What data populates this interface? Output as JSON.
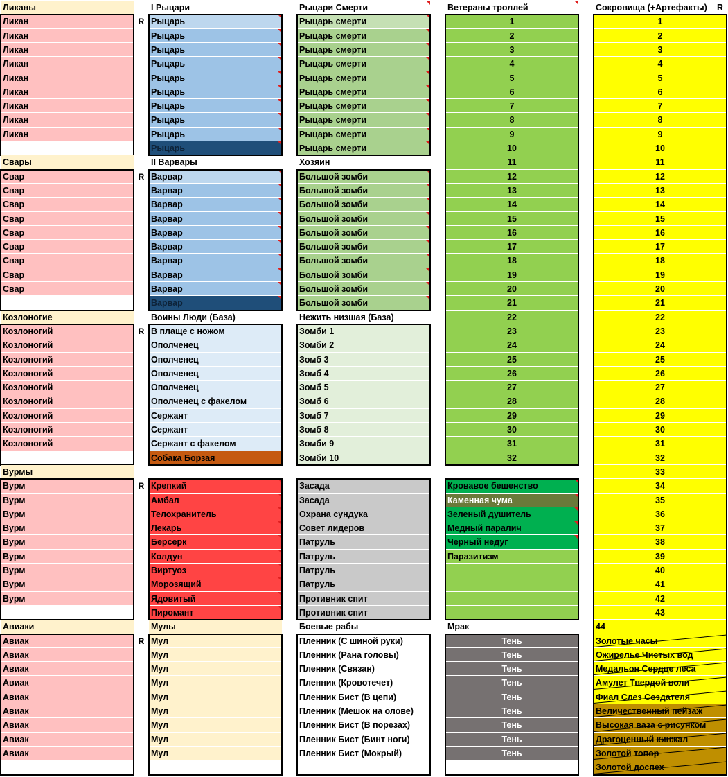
{
  "colors": {
    "header": "#fff2cc",
    "pink": "#ffc0c0",
    "blue_light": "#bdd7ee",
    "blue": "#9dc3e6",
    "blue_dark": "#1f4e79",
    "green_light": "#c5e0b4",
    "green": "#a9d18e",
    "green_pale": "#e2efda",
    "lime": "#92d050",
    "red": "#ff4444",
    "gray": "#c9c9c9",
    "dark_gray": "#767171",
    "bright_green": "#00b050",
    "olive": "#6a7a3a",
    "brown_orange": "#c55a11",
    "yellow": "#ffff00",
    "gold": "#bf8f00"
  },
  "r_marks": [
    "R",
    "R",
    "R",
    "R",
    "R",
    "R"
  ],
  "col_a": {
    "groups": [
      {
        "header": "Ликаны",
        "items": [
          "Ликан",
          "Ликан",
          "Ликан",
          "Ликан",
          "Ликан",
          "Ликан",
          "Ликан",
          "Ликан",
          "Ликан"
        ]
      },
      {
        "header": "Свары",
        "items": [
          "Свар",
          "Свар",
          "Свар",
          "Свар",
          "Свар",
          "Свар",
          "Свар",
          "Свар",
          "Свар"
        ]
      },
      {
        "header": "Козлоногие",
        "items": [
          "Козлоногий",
          "Козлоногий",
          "Козлоногий",
          "Козлоногий",
          "Козлоногий",
          "Козлоногий",
          "Козлоногий",
          "Козлоногий",
          "Козлоногий"
        ]
      },
      {
        "header": "Вурмы",
        "items": [
          "Вурм",
          "Вурм",
          "Вурм",
          "Вурм",
          "Вурм",
          "Вурм",
          "Вурм",
          "Вурм",
          "Вурм"
        ]
      },
      {
        "header": "Авиаки",
        "items": [
          "Авиак",
          "Авиак",
          "Авиак",
          "Авиак",
          "Авиак",
          "Авиак",
          "Авиак",
          "Авиак",
          "Авиак"
        ]
      }
    ]
  },
  "col_b": {
    "groups": [
      {
        "header": "I Рыцари",
        "items": [
          "Рыцарь",
          "Рыцарь",
          "Рыцарь",
          "Рыцарь",
          "Рыцарь",
          "Рыцарь",
          "Рыцарь",
          "Рыцарь",
          "Рыцарь",
          "Рыцарь"
        ]
      },
      {
        "header": "II Варвары",
        "items": [
          "Варвар",
          "Варвар",
          "Варвар",
          "Варвар",
          "Варвар",
          "Варвар",
          "Варвар",
          "Варвар",
          "Варвар",
          "Варвар"
        ]
      },
      {
        "header": "Воины Люди (База)",
        "items": [
          "В плаще с ножом",
          "Ополченец",
          "Ополченец",
          "Ополченец",
          "Ополченец",
          "Ополченец с факелом",
          "Сержант",
          "Сержант",
          "Сержант с факелом",
          "Собака Борзая"
        ]
      },
      {
        "header": "",
        "items": [
          "Крепкий",
          "Амбал",
          "Телохранитель",
          "Лекарь",
          "Берсерк",
          "Колдун",
          "Виртуоз",
          "Морозящий",
          "Ядовитый",
          "Пиромант"
        ]
      },
      {
        "header": "Мулы",
        "items": [
          "Мул",
          "Мул",
          "Мул",
          "Мул",
          "Мул",
          "Мул",
          "Мул",
          "Мул",
          "Мул"
        ]
      }
    ]
  },
  "col_c": {
    "groups": [
      {
        "header": "Рыцари Смерти",
        "items": [
          "Рыцарь смерти",
          "Рыцарь смерти",
          "Рыцарь смерти",
          "Рыцарь смерти",
          "Рыцарь смерти",
          "Рыцарь смерти",
          "Рыцарь смерти",
          "Рыцарь смерти",
          "Рыцарь смерти",
          "Рыцарь смерти"
        ]
      },
      {
        "header": "Хозяин",
        "items": [
          "Большой зомби",
          "Большой зомби",
          "Большой зомби",
          "Большой зомби",
          "Большой зомби",
          "Большой зомби",
          "Большой зомби",
          "Большой зомби",
          "Большой зомби",
          "Большой зомби"
        ]
      },
      {
        "header": "Нежить низшая (База)",
        "items": [
          "Зомби 1",
          "Зомби 2",
          "Зомб 3",
          "Зомб 4",
          "Зомб 5",
          "Зомб 6",
          "Зомб 7",
          "Зомб 8",
          "Зомби 9",
          "Зомби 10"
        ]
      },
      {
        "header": "",
        "items": [
          "Засада",
          "Засада",
          "Охрана сундука",
          "Совет лидеров",
          "Патруль",
          "Патруль",
          "Патруль",
          "Патруль",
          "Противник спит",
          "Противник спит"
        ]
      },
      {
        "header": "Боевые рабы",
        "items": [
          "Пленник (С шиной руки)",
          "Пленник (Рана головы)",
          "Пленник (Связан)",
          "Пленник (Кровотечет)",
          "Пленник Бист (В цепи)",
          "Пленник (Мешок на олове)",
          "Пленник Бист (В порезах)",
          "Пленник Бист (Бинт ноги)",
          "Пленник Бист (Мокрый)"
        ]
      }
    ]
  },
  "col_d": {
    "header": "Ветераны троллей",
    "numbers": [
      "1",
      "2",
      "3",
      "4",
      "5",
      "6",
      "7",
      "8",
      "9",
      "10",
      "11",
      "12",
      "13",
      "14",
      "15",
      "16",
      "17",
      "18",
      "19",
      "20",
      "21",
      "22",
      "23",
      "24",
      "25",
      "26",
      "27",
      "28",
      "29",
      "30",
      "31",
      "32"
    ],
    "diseases": [
      "Кровавое бешенство",
      "Каменная чума",
      "Зеленый душитель",
      "Медный паралич",
      "Черный недуг",
      "Паразитизм"
    ],
    "mrak_header": "Мрак",
    "shadows": [
      "Тень",
      "Тень",
      "Тень",
      "Тень",
      "Тень",
      "Тень",
      "Тень",
      "Тень",
      "Тень"
    ]
  },
  "col_e": {
    "header": "Сокровища (+Артефакты)",
    "r_mark": "R",
    "numbers": [
      "1",
      "2",
      "3",
      "4",
      "5",
      "6",
      "7",
      "8",
      "9",
      "10",
      "11",
      "12",
      "13",
      "14",
      "15",
      "16",
      "17",
      "18",
      "19",
      "20",
      "21",
      "22",
      "23",
      "24",
      "25",
      "26",
      "27",
      "28",
      "29",
      "30",
      "31",
      "32",
      "33",
      "34",
      "35",
      "36",
      "37",
      "38",
      "39",
      "40",
      "41",
      "42",
      "43",
      "44"
    ],
    "artifacts": [
      "Золотые часы",
      "Ожирелье Чистых вод",
      "Медальон Сердце леса",
      "Амулет Твердой воли",
      "Фиал Слез Создателя",
      "Величественный пейзаж",
      "Высокая ваза с рисунком",
      "Драгоценный кинжал",
      "Золотой топор",
      "Золотой доспех"
    ]
  }
}
